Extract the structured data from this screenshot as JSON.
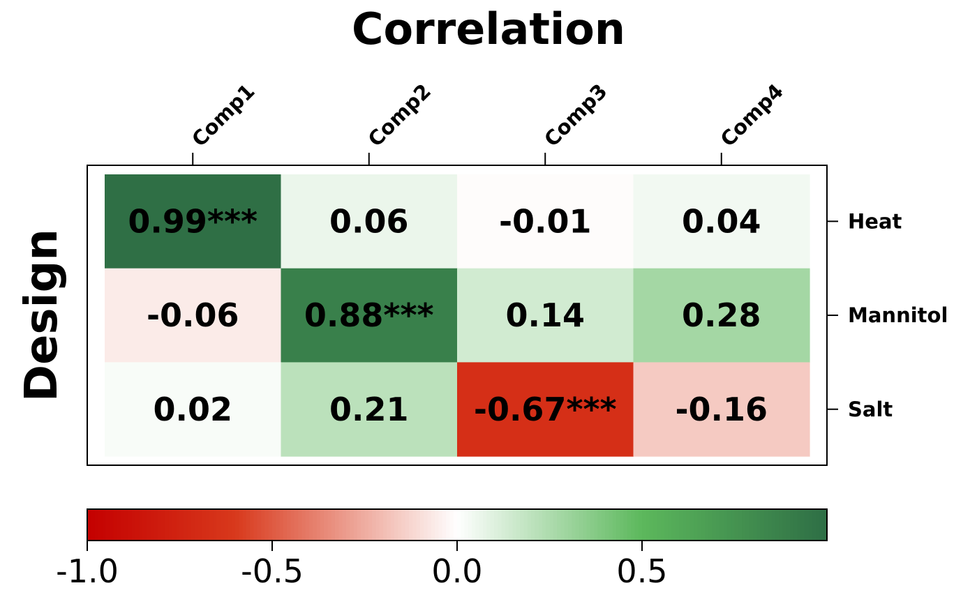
{
  "chart_data": {
    "type": "heatmap",
    "title": "Correlation",
    "ylabel": "Design",
    "columns": [
      "Comp1",
      "Comp2",
      "Comp3",
      "Comp4"
    ],
    "rows": [
      "Heat",
      "Mannitol",
      "Salt"
    ],
    "values": [
      [
        0.99,
        0.06,
        -0.01,
        0.04
      ],
      [
        -0.06,
        0.88,
        0.14,
        0.28
      ],
      [
        0.02,
        0.21,
        -0.67,
        -0.16
      ]
    ],
    "labels": [
      [
        "0.99***",
        "0.06",
        "-0.01",
        "0.04"
      ],
      [
        "-0.06",
        "0.88***",
        "0.14",
        "0.28"
      ],
      [
        "0.02",
        "0.21",
        "-0.67***",
        "-0.16"
      ]
    ],
    "color_scale": {
      "min": -1.0,
      "max": 1.0,
      "stops": [
        {
          "value": -1.0,
          "color": "#c40000"
        },
        {
          "value": -0.6,
          "color": "#d8391c"
        },
        {
          "value": 0.0,
          "color": "#ffffff"
        },
        {
          "value": 0.5,
          "color": "#5cb85c"
        },
        {
          "value": 1.0,
          "color": "#2e6e45"
        }
      ],
      "ticks": [
        -1.0,
        -0.5,
        0.0,
        0.5
      ],
      "tick_labels": [
        "-1.0",
        "-0.5",
        "0.0",
        "0.5"
      ]
    },
    "grid": false,
    "legend": "bottom"
  }
}
